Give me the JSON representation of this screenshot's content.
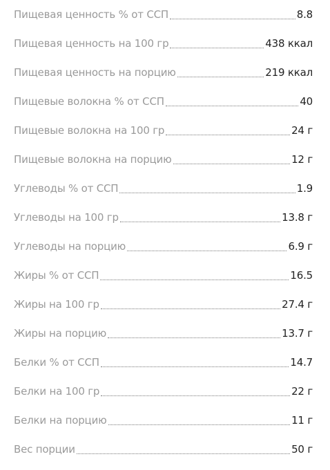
{
  "rows": [
    {
      "label": "Пищевая ценность % от ССП",
      "value": "8.8"
    },
    {
      "label": "Пищевая ценность на 100 гр",
      "value": "438 ккал"
    },
    {
      "label": "Пищевая ценность на порцию",
      "value": "219 ккал"
    },
    {
      "label": "Пищевые волокна % от ССП",
      "value": "40"
    },
    {
      "label": "Пищевые волокна на 100 гр",
      "value": "24 г"
    },
    {
      "label": "Пищевые волокна на порцию",
      "value": "12 г"
    },
    {
      "label": "Углеводы % от ССП",
      "value": "1.9"
    },
    {
      "label": "Углеводы на 100 гр",
      "value": "13.8 г"
    },
    {
      "label": "Углеводы на порцию",
      "value": "6.9 г"
    },
    {
      "label": "Жиры % от ССП",
      "value": "16.5"
    },
    {
      "label": "Жиры на 100 гр",
      "value": "27.4 г"
    },
    {
      "label": "Жиры на порцию",
      "value": "13.7 г"
    },
    {
      "label": "Белки % от ССП",
      "value": "14.7"
    },
    {
      "label": "Белки на 100 гр",
      "value": "22 г"
    },
    {
      "label": "Белки на порцию",
      "value": "11 г"
    },
    {
      "label": "Вес порции",
      "value": "50 г"
    }
  ]
}
